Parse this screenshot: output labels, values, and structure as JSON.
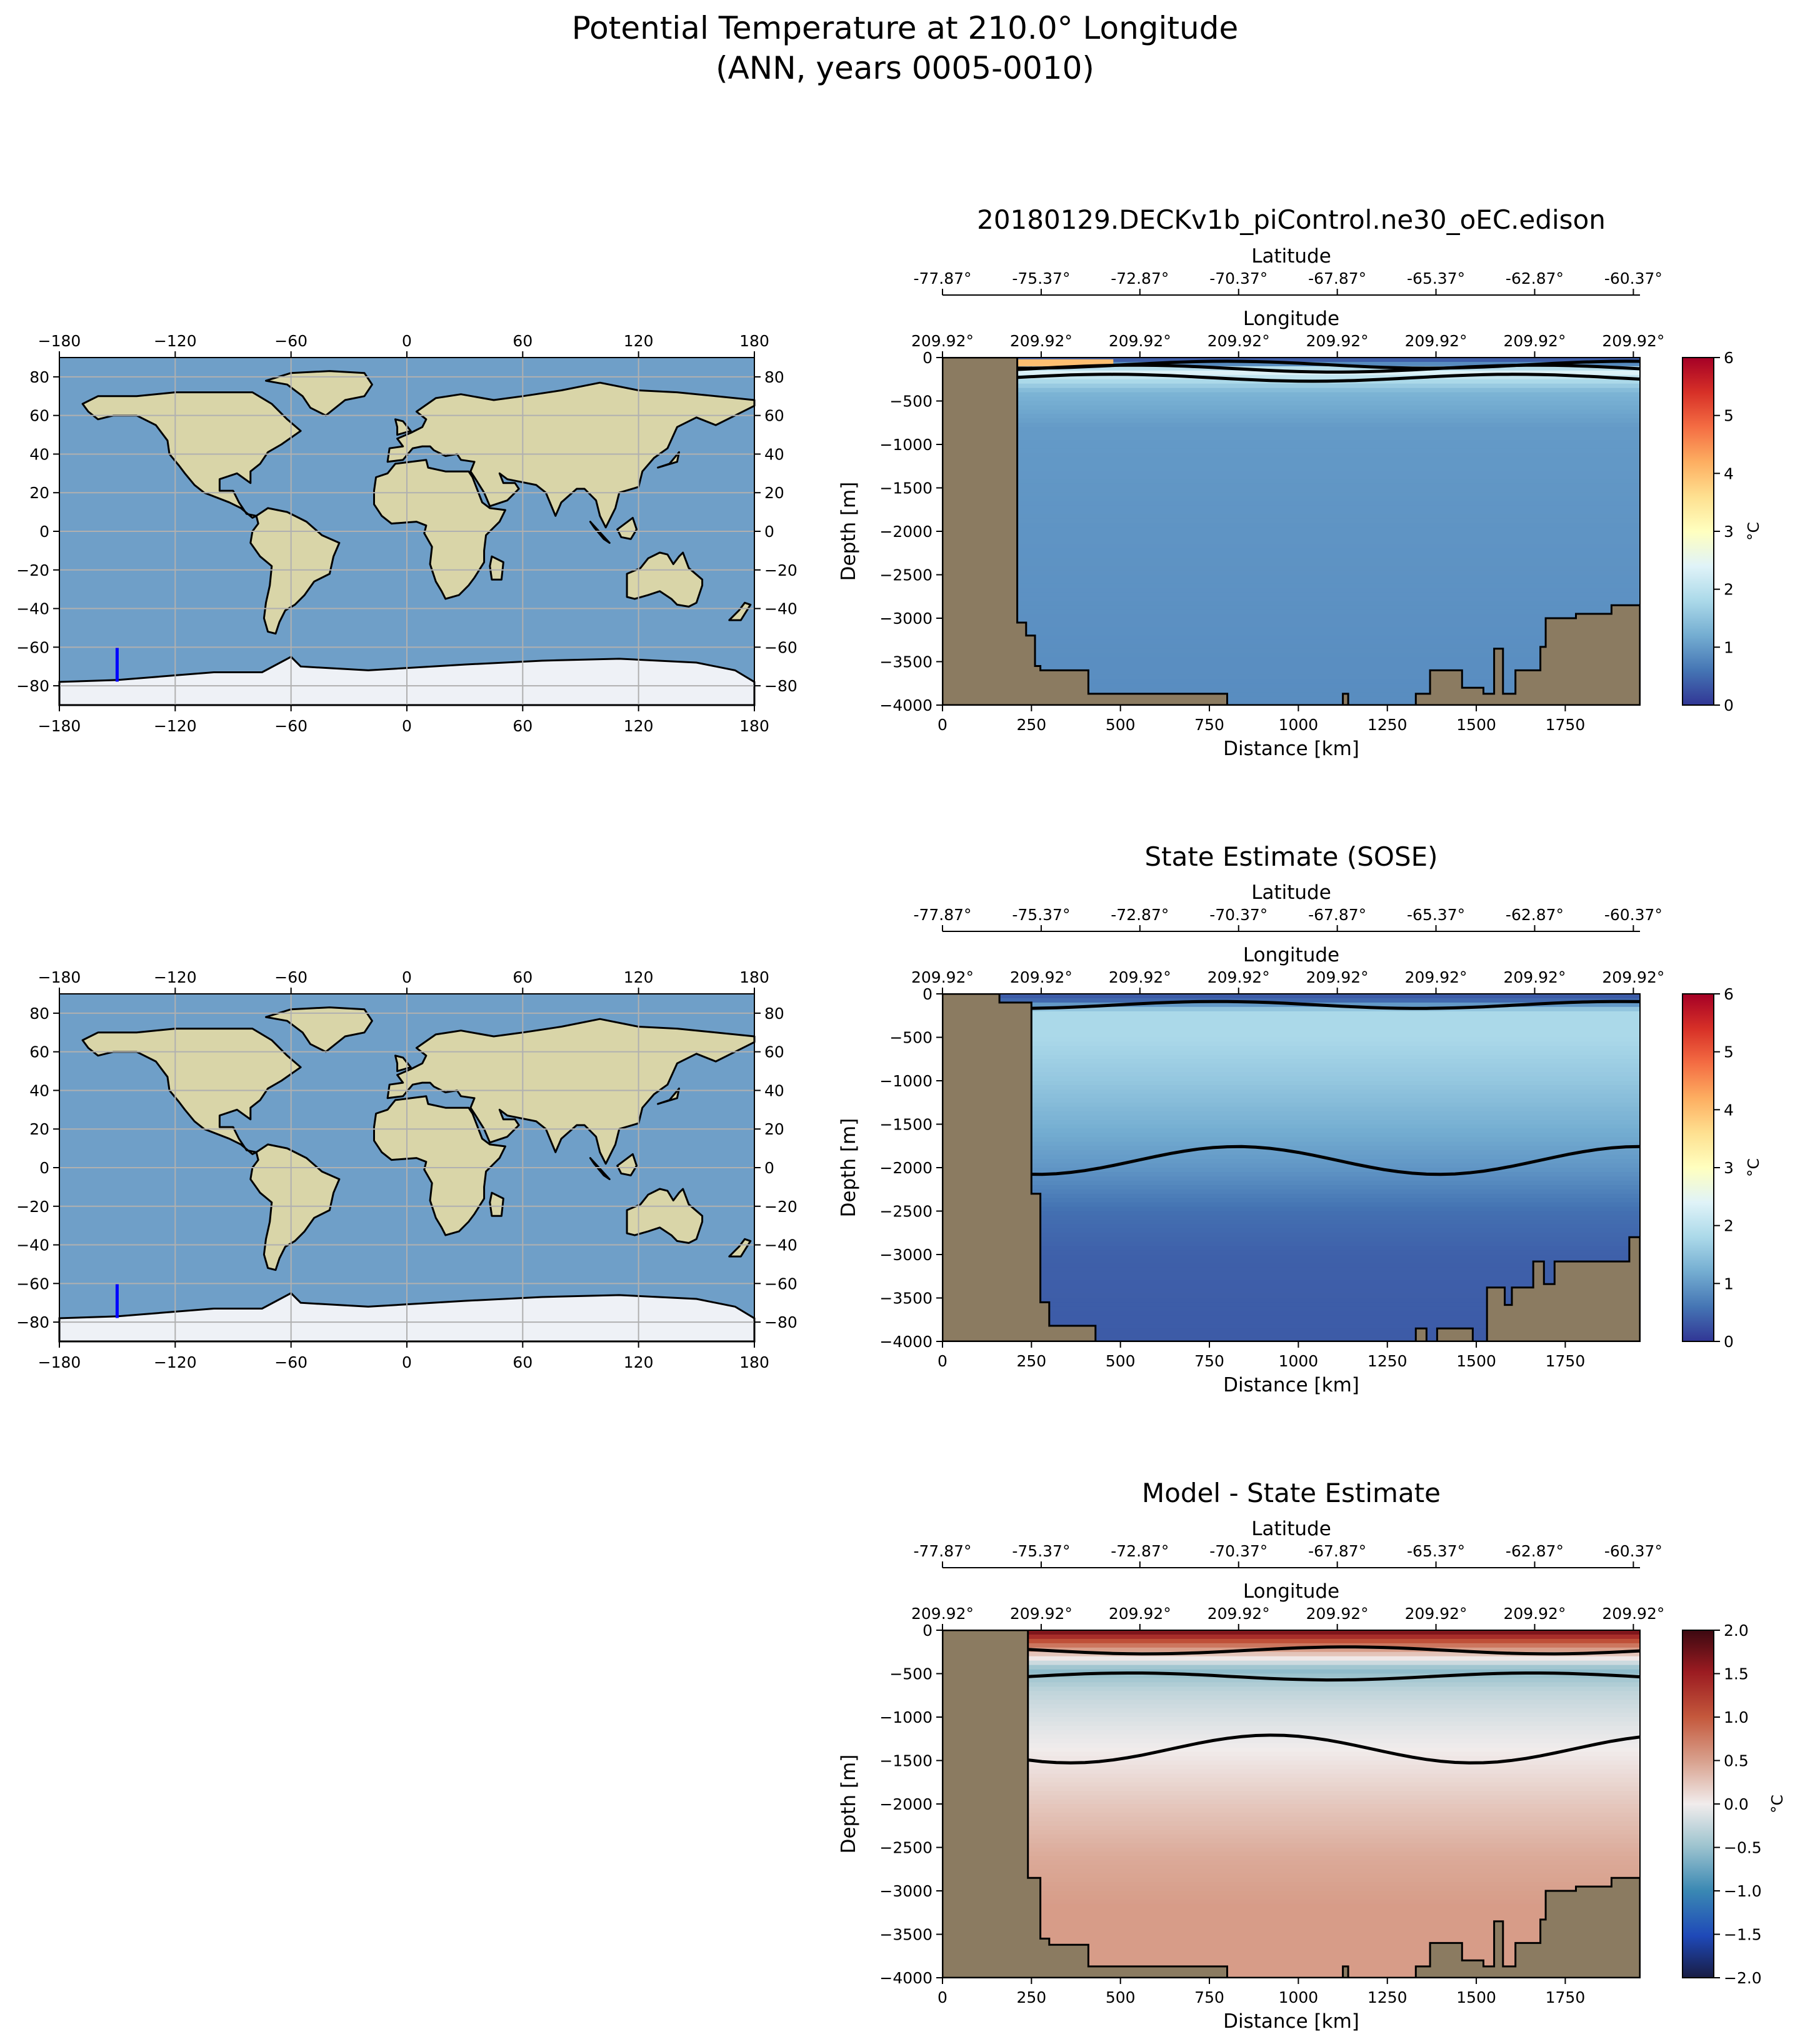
{
  "figure": {
    "title_line1": "Potential Temperature at 210.0° Longitude",
    "title_line2": "(ANN, years 0005-0010)"
  },
  "colors": {
    "land": "#8b7b61",
    "ocean": "#6f9fc8",
    "continent": "#d9d5a8",
    "ice": "#eef1f6",
    "transect_line": "#0000ff",
    "contour": "#000000"
  },
  "maps": [
    {
      "name": "map-model",
      "xticks": [
        "−180",
        "−120",
        "−60",
        "0",
        "60",
        "120",
        "180"
      ],
      "yticks": [
        "−80",
        "−60",
        "−40",
        "−20",
        "0",
        "20",
        "40",
        "60",
        "80"
      ],
      "yticks_right": [
        "−80",
        "−60",
        "−40",
        "−20",
        "0",
        "20",
        "40",
        "60",
        "80"
      ],
      "transect": {
        "lon": -150.08,
        "lat_start": -77.87,
        "lat_end": -60.37
      }
    },
    {
      "name": "map-obs",
      "xticks": [
        "−180",
        "−120",
        "−60",
        "0",
        "60",
        "120",
        "180"
      ],
      "yticks": [
        "−80",
        "−60",
        "−40",
        "−20",
        "0",
        "20",
        "40",
        "60",
        "80"
      ],
      "yticks_right": [
        "−80",
        "−60",
        "−40",
        "−20",
        "0",
        "20",
        "40",
        "60",
        "80"
      ],
      "transect": {
        "lon": -150.08,
        "lat_start": -77.87,
        "lat_end": -60.37
      }
    }
  ],
  "chart_data": [
    {
      "type": "heatmap",
      "title": "20180129.DECKv1b_piControl.ne30_oEC.edison",
      "xlabel": "Distance [km]",
      "ylabel": "Depth [m]",
      "xlim": [
        0,
        1960
      ],
      "ylim": [
        -4000,
        0
      ],
      "xticks": [
        "0",
        "250",
        "500",
        "750",
        "1000",
        "1250",
        "1500",
        "1750"
      ],
      "yticks": [
        "0",
        "−500",
        "−1000",
        "−1500",
        "−2000",
        "−2500",
        "−3000",
        "−3500",
        "−4000"
      ],
      "lat_label": "Latitude",
      "lat_ticks": [
        "-77.87°",
        "-75.37°",
        "-72.87°",
        "-70.37°",
        "-67.87°",
        "-65.37°",
        "-62.87°",
        "-60.37°"
      ],
      "lon_label": "Longitude",
      "lon_ticks": [
        "209.92°",
        "209.92°",
        "209.92°",
        "209.92°",
        "209.92°",
        "209.92°",
        "209.92°",
        "209.92°"
      ],
      "colorbar": {
        "label": "°C",
        "range": [
          0,
          6
        ],
        "ticks": [
          "0",
          "1",
          "2",
          "3",
          "4",
          "5",
          "6"
        ],
        "colormap": "RdYlBu_r"
      },
      "bottom_topography": [
        [
          0,
          0
        ],
        [
          210,
          0
        ],
        [
          210,
          -3050
        ],
        [
          235,
          -3050
        ],
        [
          235,
          -3200
        ],
        [
          260,
          -3200
        ],
        [
          260,
          -3550
        ],
        [
          275,
          -3550
        ],
        [
          275,
          -3600
        ],
        [
          410,
          -3600
        ],
        [
          410,
          -3870
        ],
        [
          800,
          -3870
        ],
        [
          800,
          -4000
        ],
        [
          1125,
          -4000
        ],
        [
          1125,
          -3870
        ],
        [
          1140,
          -3870
        ],
        [
          1140,
          -4000
        ],
        [
          1330,
          -4000
        ],
        [
          1330,
          -3870
        ],
        [
          1370,
          -3870
        ],
        [
          1370,
          -3600
        ],
        [
          1460,
          -3600
        ],
        [
          1460,
          -3800
        ],
        [
          1520,
          -3800
        ],
        [
          1520,
          -3870
        ],
        [
          1550,
          -3870
        ],
        [
          1550,
          -3350
        ],
        [
          1575,
          -3350
        ],
        [
          1575,
          -3870
        ],
        [
          1610,
          -3870
        ],
        [
          1610,
          -3600
        ],
        [
          1680,
          -3600
        ],
        [
          1680,
          -3330
        ],
        [
          1695,
          -3330
        ],
        [
          1695,
          -3000
        ],
        [
          1780,
          -3000
        ],
        [
          1780,
          -2950
        ],
        [
          1880,
          -2950
        ],
        [
          1880,
          -2850
        ],
        [
          1960,
          -2850
        ],
        [
          1960,
          -4000
        ]
      ],
      "field_profile": [
        [
          0,
          0.3
        ],
        [
          60,
          0.5
        ],
        [
          150,
          2.5
        ],
        [
          250,
          1.9
        ],
        [
          400,
          1.3
        ],
        [
          800,
          1.0
        ],
        [
          1600,
          0.95
        ],
        [
          4000,
          0.85
        ]
      ],
      "surface_warm_layer": {
        "x_start": 210,
        "x_end": 480,
        "value": 4.0
      },
      "contour_levels": [
        1,
        2,
        3
      ]
    },
    {
      "type": "heatmap",
      "title": "State Estimate (SOSE)",
      "xlabel": "Distance [km]",
      "ylabel": "Depth [m]",
      "xlim": [
        0,
        1960
      ],
      "ylim": [
        -4000,
        0
      ],
      "xticks": [
        "0",
        "250",
        "500",
        "750",
        "1000",
        "1250",
        "1500",
        "1750"
      ],
      "yticks": [
        "0",
        "−500",
        "−1000",
        "−1500",
        "−2000",
        "−2500",
        "−3000",
        "−3500",
        "−4000"
      ],
      "lat_label": "Latitude",
      "lat_ticks": [
        "-77.87°",
        "-75.37°",
        "-72.87°",
        "-70.37°",
        "-67.87°",
        "-65.37°",
        "-62.87°",
        "-60.37°"
      ],
      "lon_label": "Longitude",
      "lon_ticks": [
        "209.92°",
        "209.92°",
        "209.92°",
        "209.92°",
        "209.92°",
        "209.92°",
        "209.92°",
        "209.92°"
      ],
      "colorbar": {
        "label": "°C",
        "range": [
          0,
          6
        ],
        "ticks": [
          "0",
          "1",
          "2",
          "3",
          "4",
          "5",
          "6"
        ],
        "colormap": "RdYlBu_r"
      },
      "bottom_topography": [
        [
          0,
          0
        ],
        [
          160,
          0
        ],
        [
          160,
          -100
        ],
        [
          250,
          -100
        ],
        [
          250,
          -2300
        ],
        [
          275,
          -2300
        ],
        [
          275,
          -3550
        ],
        [
          300,
          -3550
        ],
        [
          300,
          -3820
        ],
        [
          430,
          -3820
        ],
        [
          430,
          -4000
        ],
        [
          1330,
          -4000
        ],
        [
          1330,
          -3850
        ],
        [
          1360,
          -3850
        ],
        [
          1360,
          -4000
        ],
        [
          1390,
          -4000
        ],
        [
          1390,
          -3850
        ],
        [
          1490,
          -3850
        ],
        [
          1490,
          -4000
        ],
        [
          1530,
          -4000
        ],
        [
          1530,
          -3380
        ],
        [
          1580,
          -3380
        ],
        [
          1580,
          -3580
        ],
        [
          1600,
          -3580
        ],
        [
          1600,
          -3380
        ],
        [
          1660,
          -3380
        ],
        [
          1660,
          -3080
        ],
        [
          1690,
          -3080
        ],
        [
          1690,
          -3340
        ],
        [
          1720,
          -3340
        ],
        [
          1720,
          -3080
        ],
        [
          1930,
          -3080
        ],
        [
          1930,
          -2800
        ],
        [
          1960,
          -2800
        ],
        [
          1960,
          -4000
        ]
      ],
      "field_profile": [
        [
          0,
          0.3
        ],
        [
          80,
          0.5
        ],
        [
          200,
          1.8
        ],
        [
          500,
          1.8
        ],
        [
          1000,
          1.55
        ],
        [
          1500,
          1.25
        ],
        [
          2000,
          0.95
        ],
        [
          2500,
          0.55
        ],
        [
          3000,
          0.4
        ],
        [
          4000,
          0.35
        ]
      ],
      "contour_levels": [
        1,
        2
      ]
    },
    {
      "type": "heatmap",
      "title": "Model - State Estimate",
      "xlabel": "Distance [km]",
      "ylabel": "Depth [m]",
      "xlim": [
        0,
        1960
      ],
      "ylim": [
        -4000,
        0
      ],
      "xticks": [
        "0",
        "250",
        "500",
        "750",
        "1000",
        "1250",
        "1500",
        "1750"
      ],
      "yticks": [
        "0",
        "−500",
        "−1000",
        "−1500",
        "−2000",
        "−2500",
        "−3000",
        "−3500",
        "−4000"
      ],
      "lat_label": "Latitude",
      "lat_ticks": [
        "-77.87°",
        "-75.37°",
        "-72.87°",
        "-70.37°",
        "-67.87°",
        "-65.37°",
        "-62.87°",
        "-60.37°"
      ],
      "lon_label": "Longitude",
      "lon_ticks": [
        "209.92°",
        "209.92°",
        "209.92°",
        "209.92°",
        "209.92°",
        "209.92°",
        "209.92°",
        "209.92°"
      ],
      "colorbar": {
        "label": "°C",
        "range": [
          -2,
          2
        ],
        "ticks": [
          "−2.0",
          "−1.5",
          "−1.0",
          "−0.5",
          "0.0",
          "0.5",
          "1.0",
          "1.5",
          "2.0"
        ],
        "colormap": "balance"
      },
      "bottom_topography": [
        [
          0,
          0
        ],
        [
          240,
          0
        ],
        [
          240,
          -2850
        ],
        [
          275,
          -2850
        ],
        [
          275,
          -3550
        ],
        [
          300,
          -3550
        ],
        [
          300,
          -3620
        ],
        [
          410,
          -3620
        ],
        [
          410,
          -3870
        ],
        [
          800,
          -3870
        ],
        [
          800,
          -4000
        ],
        [
          1125,
          -4000
        ],
        [
          1125,
          -3870
        ],
        [
          1140,
          -3870
        ],
        [
          1140,
          -4000
        ],
        [
          1330,
          -4000
        ],
        [
          1330,
          -3870
        ],
        [
          1370,
          -3870
        ],
        [
          1370,
          -3600
        ],
        [
          1460,
          -3600
        ],
        [
          1460,
          -3800
        ],
        [
          1520,
          -3800
        ],
        [
          1520,
          -3870
        ],
        [
          1550,
          -3870
        ],
        [
          1550,
          -3350
        ],
        [
          1575,
          -3350
        ],
        [
          1575,
          -3870
        ],
        [
          1610,
          -3870
        ],
        [
          1610,
          -3600
        ],
        [
          1680,
          -3600
        ],
        [
          1680,
          -3330
        ],
        [
          1695,
          -3330
        ],
        [
          1695,
          -3000
        ],
        [
          1780,
          -3000
        ],
        [
          1780,
          -2950
        ],
        [
          1880,
          -2950
        ],
        [
          1880,
          -2850
        ],
        [
          1960,
          -2850
        ],
        [
          1960,
          -4000
        ]
      ],
      "field_profile": [
        [
          0,
          1.8
        ],
        [
          100,
          1.2
        ],
        [
          250,
          0.4
        ],
        [
          450,
          -0.6
        ],
        [
          700,
          -0.3
        ],
        [
          1100,
          -0.1
        ],
        [
          1500,
          0.05
        ],
        [
          2000,
          0.25
        ],
        [
          2600,
          0.45
        ],
        [
          3200,
          0.55
        ],
        [
          4000,
          0.55
        ]
      ],
      "contour_levels": [
        -0.5,
        0.0,
        0.25,
        0.5
      ]
    }
  ]
}
